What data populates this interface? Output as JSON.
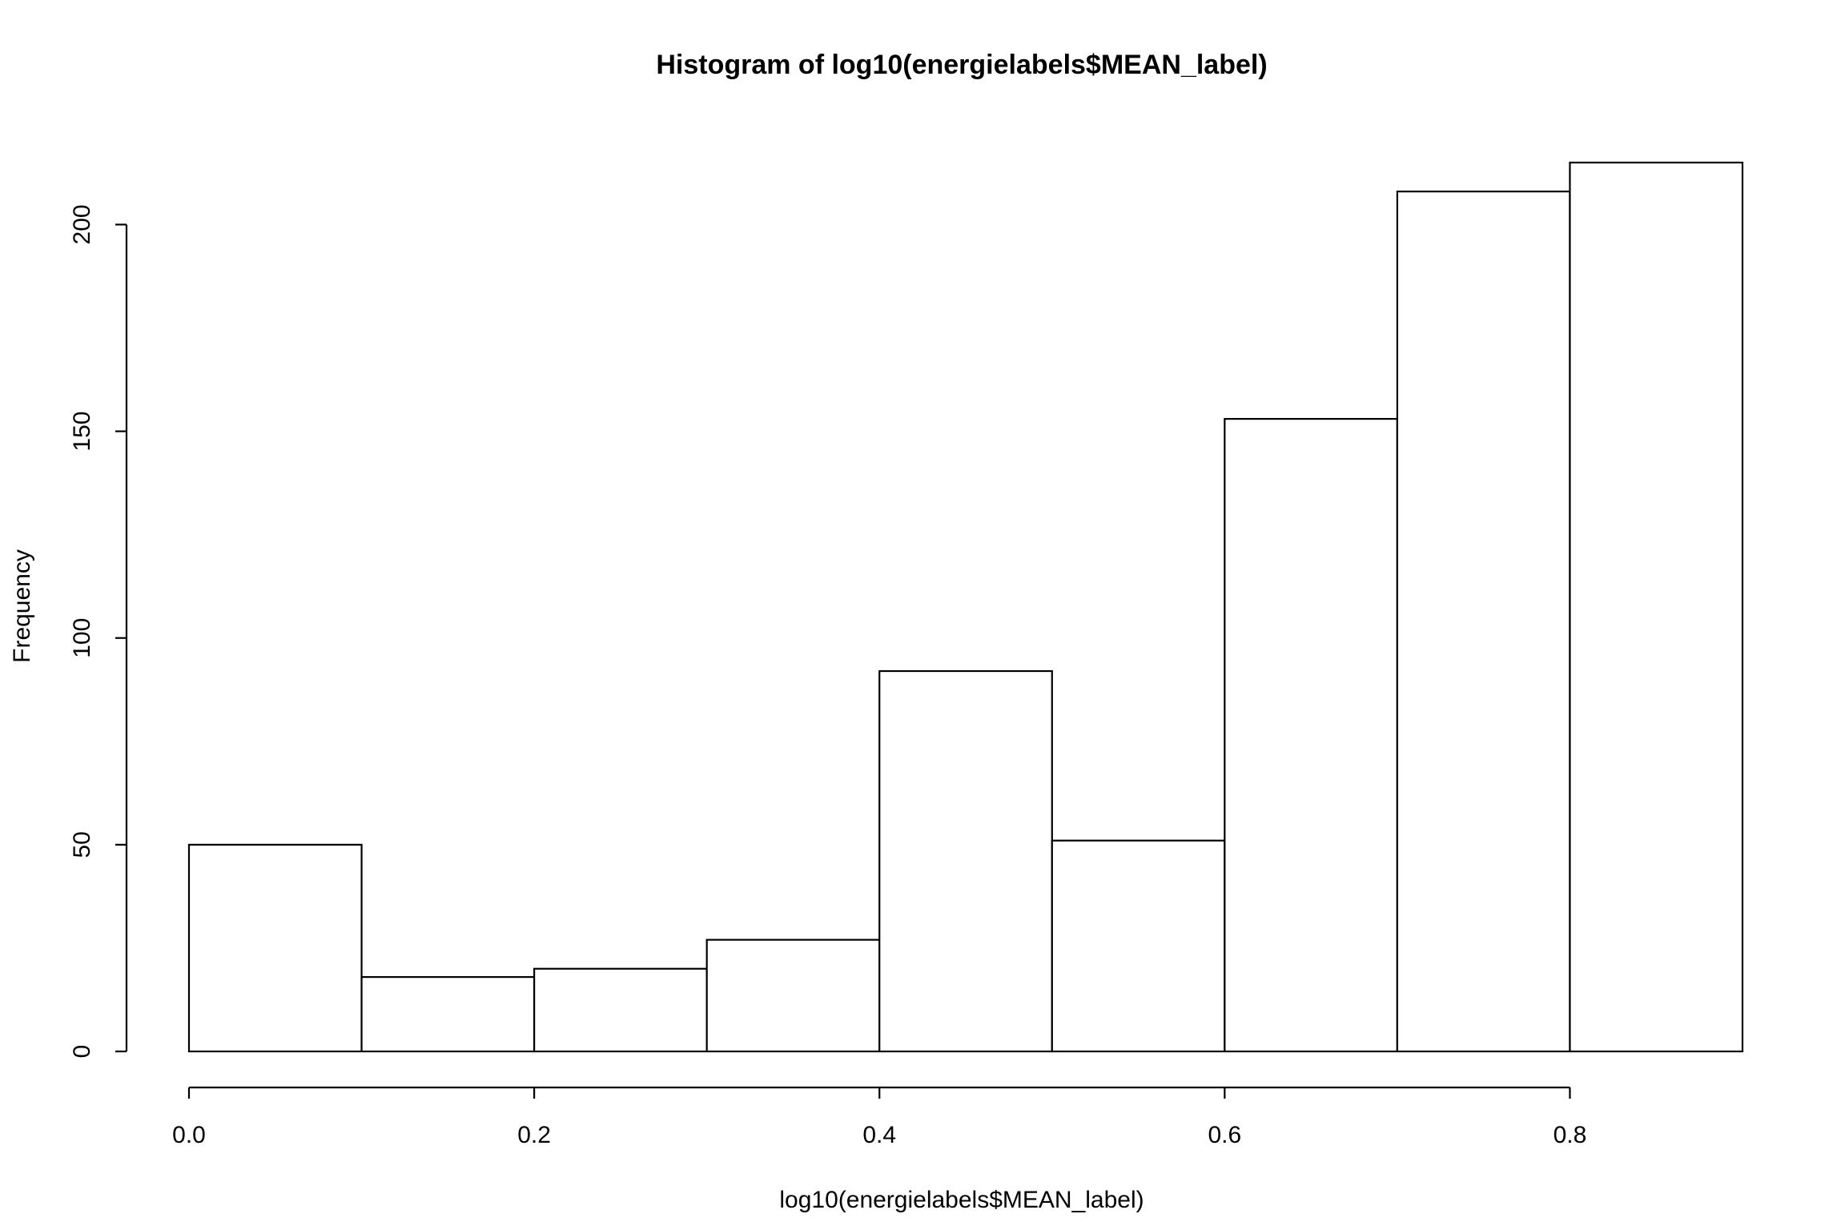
{
  "chart_data": {
    "type": "bar",
    "subtype": "histogram",
    "title": "Histogram of log10(energielabels$MEAN_label)",
    "xlabel": "log10(energielabels$MEAN_label)",
    "ylabel": "Frequency",
    "bins": [
      {
        "start": 0.0,
        "end": 0.1,
        "count": 50
      },
      {
        "start": 0.1,
        "end": 0.2,
        "count": 18
      },
      {
        "start": 0.2,
        "end": 0.3,
        "count": 20
      },
      {
        "start": 0.3,
        "end": 0.4,
        "count": 27
      },
      {
        "start": 0.4,
        "end": 0.5,
        "count": 92
      },
      {
        "start": 0.5,
        "end": 0.6,
        "count": 51
      },
      {
        "start": 0.6,
        "end": 0.7,
        "count": 153
      },
      {
        "start": 0.7,
        "end": 0.8,
        "count": 208
      },
      {
        "start": 0.8,
        "end": 0.9,
        "count": 215
      }
    ],
    "xlim": [
      0.0,
      0.9
    ],
    "ylim": [
      0,
      215
    ],
    "x_ticks": [
      {
        "value": 0.0,
        "label": "0.0"
      },
      {
        "value": 0.2,
        "label": "0.2"
      },
      {
        "value": 0.4,
        "label": "0.4"
      },
      {
        "value": 0.6,
        "label": "0.6"
      },
      {
        "value": 0.8,
        "label": "0.8"
      }
    ],
    "y_ticks": [
      {
        "value": 0,
        "label": "0"
      },
      {
        "value": 50,
        "label": "50"
      },
      {
        "value": 100,
        "label": "100"
      },
      {
        "value": 150,
        "label": "150"
      },
      {
        "value": 200,
        "label": "200"
      }
    ],
    "grid": false,
    "bar_fill": "#ffffff",
    "bar_stroke": "#000000"
  }
}
